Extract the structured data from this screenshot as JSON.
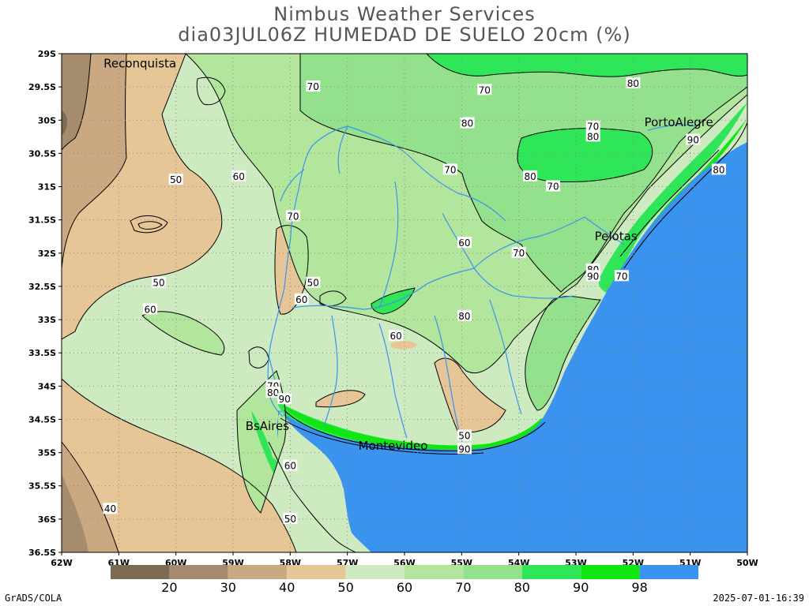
{
  "title": {
    "line1": "Nimbus Weather Services",
    "line2": "dia03JUL06Z HUMEDAD DE SUELO 20cm (%)"
  },
  "lat_labels": [
    "29S",
    "29.5S",
    "30S",
    "30.5S",
    "31S",
    "31.5S",
    "32S",
    "32.5S",
    "33S",
    "33.5S",
    "34S",
    "34.5S",
    "35S",
    "35.5S",
    "36S",
    "36.5S"
  ],
  "lon_labels": [
    "62W",
    "61W",
    "60W",
    "59W",
    "58W",
    "57W",
    "56W",
    "55W",
    "54W",
    "53W",
    "52W",
    "51W",
    "50W"
  ],
  "cities": [
    {
      "name": "Reconquista",
      "lon": -60.63,
      "lat": -29.15
    },
    {
      "name": "PortoAlegre",
      "lon": -51.2,
      "lat": -30.03
    },
    {
      "name": "Pelotas",
      "lon": -52.3,
      "lat": -31.75
    },
    {
      "name": "BsAires",
      "lon": -58.4,
      "lat": -34.6
    },
    {
      "name": "Montevideo",
      "lon": -56.2,
      "lat": -34.9
    }
  ],
  "contour_labels": [
    {
      "text": "70",
      "lon": -57.6,
      "lat": -29.5
    },
    {
      "text": "70",
      "lon": -54.6,
      "lat": -29.55
    },
    {
      "text": "80",
      "lon": -52.0,
      "lat": -29.45
    },
    {
      "text": "80",
      "lon": -54.9,
      "lat": -30.05
    },
    {
      "text": "70",
      "lon": -52.7,
      "lat": -30.1
    },
    {
      "text": "80",
      "lon": -52.7,
      "lat": -30.25
    },
    {
      "text": "90",
      "lon": -50.95,
      "lat": -30.3
    },
    {
      "text": "80",
      "lon": -50.5,
      "lat": -30.75
    },
    {
      "text": "70",
      "lon": -55.2,
      "lat": -30.75
    },
    {
      "text": "80",
      "lon": -53.8,
      "lat": -30.85
    },
    {
      "text": "70",
      "lon": -53.4,
      "lat": -31.0
    },
    {
      "text": "60",
      "lon": -58.9,
      "lat": -30.85
    },
    {
      "text": "50",
      "lon": -60.0,
      "lat": -30.9
    },
    {
      "text": "70",
      "lon": -57.95,
      "lat": -31.45
    },
    {
      "text": "60",
      "lon": -54.95,
      "lat": -31.85
    },
    {
      "text": "70",
      "lon": -54.0,
      "lat": -32.0
    },
    {
      "text": "80",
      "lon": -52.7,
      "lat": -32.25
    },
    {
      "text": "90",
      "lon": -52.7,
      "lat": -32.35
    },
    {
      "text": "70",
      "lon": -52.2,
      "lat": -32.35
    },
    {
      "text": "50",
      "lon": -60.3,
      "lat": -32.45
    },
    {
      "text": "50",
      "lon": -57.6,
      "lat": -32.45
    },
    {
      "text": "60",
      "lon": -57.8,
      "lat": -32.7
    },
    {
      "text": "60",
      "lon": -60.45,
      "lat": -32.85
    },
    {
      "text": "80",
      "lon": -54.95,
      "lat": -32.95
    },
    {
      "text": "60",
      "lon": -56.15,
      "lat": -33.25
    },
    {
      "text": "70",
      "lon": -58.3,
      "lat": -34.0
    },
    {
      "text": "80",
      "lon": -58.3,
      "lat": -34.1
    },
    {
      "text": "90",
      "lon": -58.1,
      "lat": -34.2
    },
    {
      "text": "50",
      "lon": -54.95,
      "lat": -34.75
    },
    {
      "text": "90",
      "lon": -54.95,
      "lat": -34.95
    },
    {
      "text": "60",
      "lon": -58.0,
      "lat": -35.2
    },
    {
      "text": "40",
      "lon": -61.15,
      "lat": -35.85
    },
    {
      "text": "50",
      "lon": -58.0,
      "lat": -36.0
    }
  ],
  "legend": {
    "labels": [
      "20",
      "30",
      "40",
      "50",
      "60",
      "70",
      "80",
      "90",
      "98"
    ],
    "colors": [
      "#7d6a52",
      "#a68c6e",
      "#c9a882",
      "#e6c596",
      "#cdeac1",
      "#b2e69d",
      "#93e08d",
      "#2ee658",
      "#10e610",
      "#3b93f0"
    ]
  },
  "fill_colors": {
    "brown_dark": "#a68c6e",
    "tan": "#e6c596",
    "pale_green": "#cdeac1",
    "light_green": "#b2e69d",
    "mid_green": "#93e08d",
    "green": "#2ee658",
    "bright_green": "#10e610",
    "ocean": "#3b93f0",
    "river": "#3b93f0"
  },
  "footer": {
    "left": "GrADS/COLA",
    "right": "2025-07-01-16:39"
  }
}
